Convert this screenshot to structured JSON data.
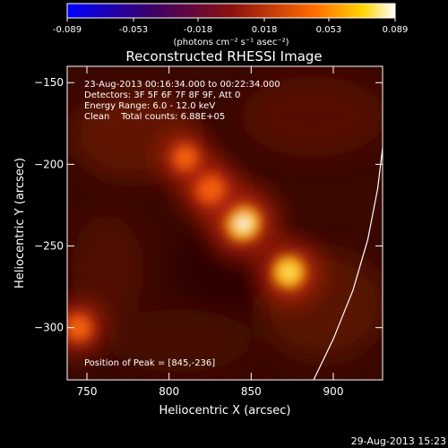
{
  "colorbar": {
    "ticks": [
      "-0.089",
      "-0.053",
      "-0.018",
      "0.018",
      "0.053",
      "0.089"
    ],
    "tick_values": [
      -0.089,
      -0.053,
      -0.018,
      0.018,
      0.053,
      0.089
    ],
    "range": [
      -0.089,
      0.089
    ],
    "unit_label": "(photons cm⁻² s⁻¹ asec⁻²)"
  },
  "chart_data": {
    "type": "heatmap",
    "title": "Reconstructed RHESSI Image",
    "xlabel": "Heliocentric X (arcsec)",
    "ylabel": "Heliocentric Y (arcsec)",
    "xlim": [
      738,
      930
    ],
    "ylim": [
      -332,
      -140
    ],
    "x_ticks": [
      750,
      800,
      850,
      900
    ],
    "y_ticks": [
      -150,
      -200,
      -250,
      -300
    ],
    "annotations": [
      "23-Aug-2013 00:16:34.000 to 00:22:34.000",
      "Detectors: 3F 5F 6F 7F 8F 9F, Att 0",
      "Energy Range: 6.0 - 12.0 keV",
      "Clean    Total counts: 6.88E+05"
    ],
    "peak_label": "Position of Peak = [845,-236]",
    "peak": [
      845,
      -236
    ],
    "sources": [
      {
        "x": 845,
        "y": -236,
        "intensity": 1.0
      },
      {
        "x": 825,
        "y": -215,
        "intensity": 0.75
      },
      {
        "x": 810,
        "y": -196,
        "intensity": 0.6
      },
      {
        "x": 873,
        "y": -266,
        "intensity": 0.85
      },
      {
        "x": 745,
        "y": -300,
        "intensity": 0.65
      }
    ],
    "limb_curve": [
      [
        888,
        -332
      ],
      [
        900,
        -307
      ],
      [
        912,
        -277
      ],
      [
        921,
        -246
      ],
      [
        927,
        -215
      ],
      [
        930,
        -190
      ]
    ]
  },
  "timestamp": "29-Aug-2013 15:23"
}
